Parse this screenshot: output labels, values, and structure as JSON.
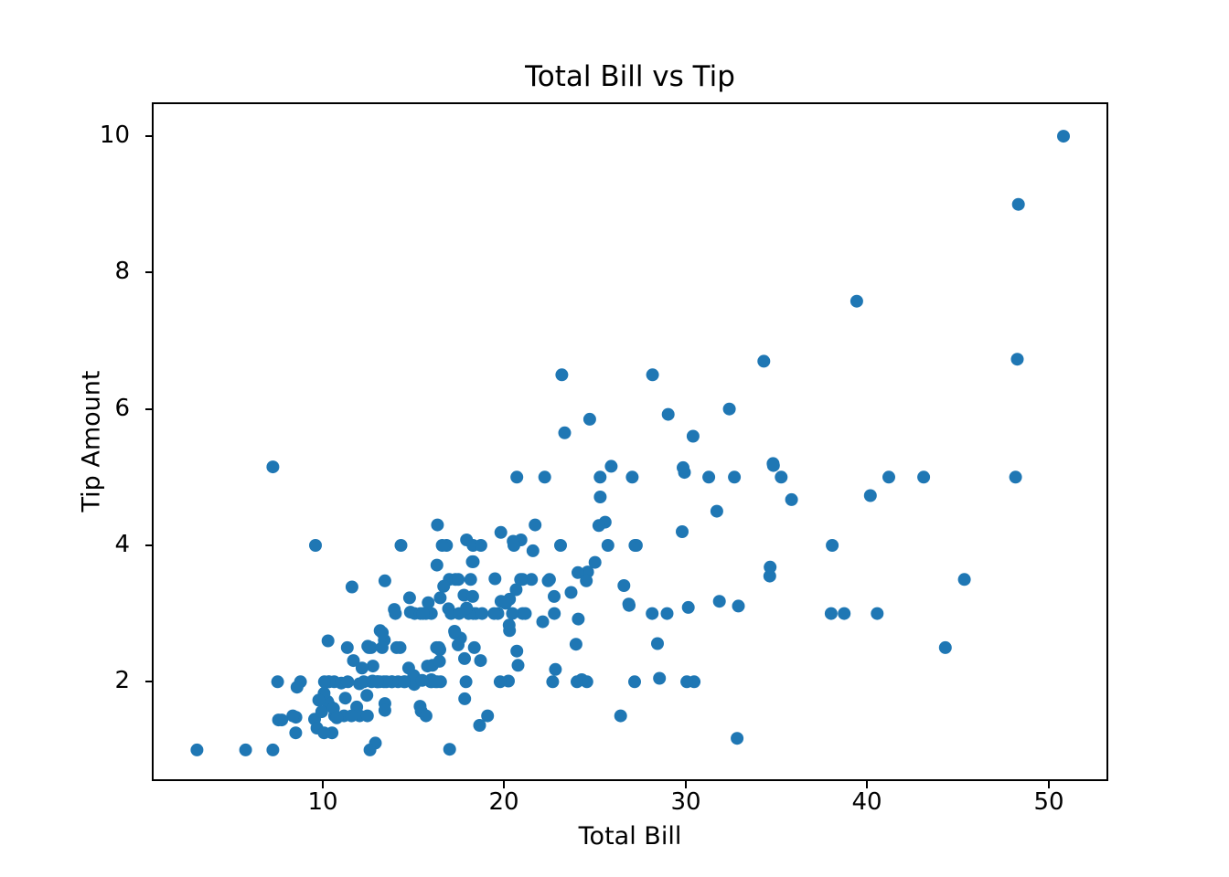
{
  "chart_data": {
    "type": "scatter",
    "title": "Total Bill vs Tip",
    "xlabel": "Total Bill",
    "ylabel": "Tip Amount",
    "xlim": [
      0.68,
      53.18
    ],
    "ylim": [
      0.57,
      10.47
    ],
    "xticks": [
      10,
      20,
      30,
      40,
      50
    ],
    "yticks": [
      2,
      4,
      6,
      8,
      10
    ],
    "grid": false,
    "legend": false,
    "marker_color": "#1f77b4",
    "marker_diameter_px": 14,
    "points": [
      [
        16.99,
        1.01
      ],
      [
        10.34,
        1.66
      ],
      [
        21.01,
        3.5
      ],
      [
        23.68,
        3.31
      ],
      [
        24.59,
        3.61
      ],
      [
        25.29,
        4.71
      ],
      [
        8.77,
        2.0
      ],
      [
        26.88,
        3.12
      ],
      [
        15.04,
        1.96
      ],
      [
        14.78,
        3.23
      ],
      [
        10.27,
        1.71
      ],
      [
        35.26,
        5.0
      ],
      [
        15.42,
        1.57
      ],
      [
        18.43,
        3.0
      ],
      [
        14.83,
        3.02
      ],
      [
        21.58,
        3.92
      ],
      [
        10.33,
        1.67
      ],
      [
        16.29,
        3.71
      ],
      [
        16.97,
        3.5
      ],
      [
        20.65,
        3.35
      ],
      [
        17.92,
        4.08
      ],
      [
        20.29,
        2.75
      ],
      [
        15.77,
        2.23
      ],
      [
        39.42,
        7.58
      ],
      [
        19.82,
        3.18
      ],
      [
        17.81,
        2.34
      ],
      [
        13.37,
        2.0
      ],
      [
        12.69,
        2.0
      ],
      [
        21.7,
        4.3
      ],
      [
        19.65,
        3.0
      ],
      [
        9.55,
        1.45
      ],
      [
        18.35,
        2.5
      ],
      [
        15.06,
        3.0
      ],
      [
        20.69,
        2.45
      ],
      [
        17.78,
        3.27
      ],
      [
        24.06,
        3.6
      ],
      [
        16.31,
        2.0
      ],
      [
        16.93,
        3.07
      ],
      [
        18.69,
        2.31
      ],
      [
        31.27,
        5.0
      ],
      [
        16.04,
        2.24
      ],
      [
        17.46,
        2.54
      ],
      [
        13.94,
        3.06
      ],
      [
        9.68,
        1.32
      ],
      [
        30.4,
        5.6
      ],
      [
        18.29,
        3.0
      ],
      [
        22.23,
        5.0
      ],
      [
        32.4,
        6.0
      ],
      [
        28.55,
        2.05
      ],
      [
        18.04,
        3.0
      ],
      [
        12.54,
        2.5
      ],
      [
        10.29,
        2.6
      ],
      [
        34.81,
        5.2
      ],
      [
        9.94,
        1.56
      ],
      [
        25.56,
        4.34
      ],
      [
        19.49,
        3.51
      ],
      [
        38.01,
        3.0
      ],
      [
        26.41,
        1.5
      ],
      [
        11.24,
        1.76
      ],
      [
        48.27,
        6.73
      ],
      [
        20.29,
        3.21
      ],
      [
        13.81,
        2.0
      ],
      [
        11.02,
        1.98
      ],
      [
        18.29,
        3.76
      ],
      [
        17.59,
        2.64
      ],
      [
        20.08,
        3.15
      ],
      [
        16.45,
        2.47
      ],
      [
        3.07,
        1.0
      ],
      [
        20.23,
        2.01
      ],
      [
        15.01,
        2.09
      ],
      [
        12.02,
        1.97
      ],
      [
        17.07,
        3.0
      ],
      [
        26.86,
        3.14
      ],
      [
        25.28,
        5.0
      ],
      [
        14.73,
        2.2
      ],
      [
        10.51,
        1.25
      ],
      [
        17.92,
        3.08
      ],
      [
        27.2,
        4.0
      ],
      [
        22.76,
        3.0
      ],
      [
        17.29,
        2.71
      ],
      [
        19.44,
        3.0
      ],
      [
        16.66,
        3.4
      ],
      [
        10.07,
        1.83
      ],
      [
        32.68,
        5.0
      ],
      [
        15.98,
        2.03
      ],
      [
        34.83,
        5.17
      ],
      [
        13.03,
        2.0
      ],
      [
        18.28,
        4.0
      ],
      [
        24.71,
        5.85
      ],
      [
        21.16,
        3.0
      ],
      [
        28.97,
        3.0
      ],
      [
        22.49,
        3.5
      ],
      [
        5.75,
        1.0
      ],
      [
        16.32,
        4.3
      ],
      [
        22.75,
        3.25
      ],
      [
        40.17,
        4.73
      ],
      [
        27.28,
        4.0
      ],
      [
        12.03,
        1.5
      ],
      [
        21.01,
        3.0
      ],
      [
        12.46,
        1.5
      ],
      [
        11.35,
        2.5
      ],
      [
        15.38,
        3.0
      ],
      [
        44.3,
        2.5
      ],
      [
        22.42,
        3.48
      ],
      [
        20.92,
        4.08
      ],
      [
        15.36,
        1.64
      ],
      [
        20.49,
        4.06
      ],
      [
        25.21,
        4.29
      ],
      [
        18.24,
        3.76
      ],
      [
        14.31,
        4.0
      ],
      [
        14.0,
        3.0
      ],
      [
        7.25,
        1.0
      ],
      [
        38.07,
        4.0
      ],
      [
        23.95,
        2.55
      ],
      [
        25.71,
        4.0
      ],
      [
        17.31,
        3.5
      ],
      [
        29.93,
        5.07
      ],
      [
        10.65,
        1.5
      ],
      [
        12.43,
        1.8
      ],
      [
        24.08,
        2.92
      ],
      [
        11.69,
        2.31
      ],
      [
        13.42,
        1.68
      ],
      [
        14.26,
        2.5
      ],
      [
        15.95,
        2.0
      ],
      [
        12.48,
        2.52
      ],
      [
        29.8,
        4.2
      ],
      [
        8.52,
        1.48
      ],
      [
        14.52,
        2.0
      ],
      [
        11.38,
        2.0
      ],
      [
        22.82,
        2.18
      ],
      [
        19.08,
        1.5
      ],
      [
        20.27,
        2.83
      ],
      [
        11.17,
        1.5
      ],
      [
        12.26,
        2.0
      ],
      [
        18.26,
        3.25
      ],
      [
        8.51,
        1.25
      ],
      [
        10.33,
        2.0
      ],
      [
        14.15,
        2.0
      ],
      [
        16.0,
        2.0
      ],
      [
        13.16,
        2.75
      ],
      [
        17.47,
        3.5
      ],
      [
        34.3,
        6.7
      ],
      [
        41.19,
        5.0
      ],
      [
        27.05,
        5.0
      ],
      [
        16.43,
        2.3
      ],
      [
        8.35,
        1.5
      ],
      [
        18.64,
        1.36
      ],
      [
        11.87,
        1.63
      ],
      [
        9.78,
        1.73
      ],
      [
        7.51,
        2.0
      ],
      [
        14.07,
        2.5
      ],
      [
        13.13,
        2.0
      ],
      [
        17.26,
        2.74
      ],
      [
        24.55,
        2.0
      ],
      [
        19.77,
        2.0
      ],
      [
        29.85,
        5.14
      ],
      [
        48.17,
        5.0
      ],
      [
        25.0,
        3.75
      ],
      [
        13.39,
        2.61
      ],
      [
        16.49,
        2.0
      ],
      [
        21.5,
        3.5
      ],
      [
        12.66,
        2.5
      ],
      [
        16.21,
        2.0
      ],
      [
        13.81,
        2.0
      ],
      [
        17.51,
        3.0
      ],
      [
        24.52,
        3.48
      ],
      [
        20.76,
        2.24
      ],
      [
        31.71,
        4.5
      ],
      [
        10.59,
        1.61
      ],
      [
        10.63,
        2.0
      ],
      [
        50.81,
        10.0
      ],
      [
        15.81,
        3.16
      ],
      [
        7.25,
        5.15
      ],
      [
        31.85,
        3.18
      ],
      [
        16.82,
        4.0
      ],
      [
        32.9,
        3.11
      ],
      [
        17.89,
        2.0
      ],
      [
        14.48,
        2.0
      ],
      [
        9.6,
        4.0
      ],
      [
        34.63,
        3.55
      ],
      [
        34.65,
        3.68
      ],
      [
        23.33,
        5.65
      ],
      [
        45.35,
        3.5
      ],
      [
        23.17,
        6.5
      ],
      [
        40.55,
        3.0
      ],
      [
        20.69,
        5.0
      ],
      [
        20.9,
        3.5
      ],
      [
        30.46,
        2.0
      ],
      [
        18.15,
        3.5
      ],
      [
        23.1,
        4.0
      ],
      [
        15.69,
        1.5
      ],
      [
        19.81,
        4.19
      ],
      [
        28.44,
        2.56
      ],
      [
        15.48,
        2.02
      ],
      [
        16.58,
        4.0
      ],
      [
        7.56,
        1.44
      ],
      [
        10.34,
        2.0
      ],
      [
        43.11,
        5.0
      ],
      [
        13.0,
        2.0
      ],
      [
        13.51,
        2.0
      ],
      [
        18.71,
        4.0
      ],
      [
        12.74,
        2.01
      ],
      [
        13.0,
        2.0
      ],
      [
        16.4,
        2.5
      ],
      [
        20.53,
        4.0
      ],
      [
        16.47,
        3.23
      ],
      [
        26.59,
        3.41
      ],
      [
        38.73,
        3.0
      ],
      [
        24.27,
        2.03
      ],
      [
        12.76,
        2.23
      ],
      [
        30.06,
        2.0
      ],
      [
        25.89,
        5.16
      ],
      [
        48.33,
        9.0
      ],
      [
        13.27,
        2.5
      ],
      [
        28.17,
        6.5
      ],
      [
        12.9,
        1.1
      ],
      [
        28.15,
        3.0
      ],
      [
        11.59,
        1.5
      ],
      [
        7.74,
        1.44
      ],
      [
        30.14,
        3.09
      ],
      [
        12.16,
        2.2
      ],
      [
        13.42,
        3.48
      ],
      [
        8.58,
        1.92
      ],
      [
        15.98,
        3.0
      ],
      [
        13.42,
        1.58
      ],
      [
        16.27,
        2.5
      ],
      [
        10.09,
        2.0
      ],
      [
        20.45,
        3.0
      ],
      [
        13.28,
        2.72
      ],
      [
        22.12,
        2.88
      ],
      [
        24.01,
        2.0
      ],
      [
        15.69,
        3.0
      ],
      [
        11.61,
        3.39
      ],
      [
        10.77,
        1.47
      ],
      [
        15.53,
        3.0
      ],
      [
        10.07,
        1.25
      ],
      [
        12.6,
        1.0
      ],
      [
        32.83,
        1.17
      ],
      [
        35.83,
        4.67
      ],
      [
        29.03,
        5.92
      ],
      [
        27.18,
        2.0
      ],
      [
        22.67,
        2.0
      ],
      [
        17.82,
        1.75
      ],
      [
        18.78,
        3.0
      ]
    ]
  }
}
